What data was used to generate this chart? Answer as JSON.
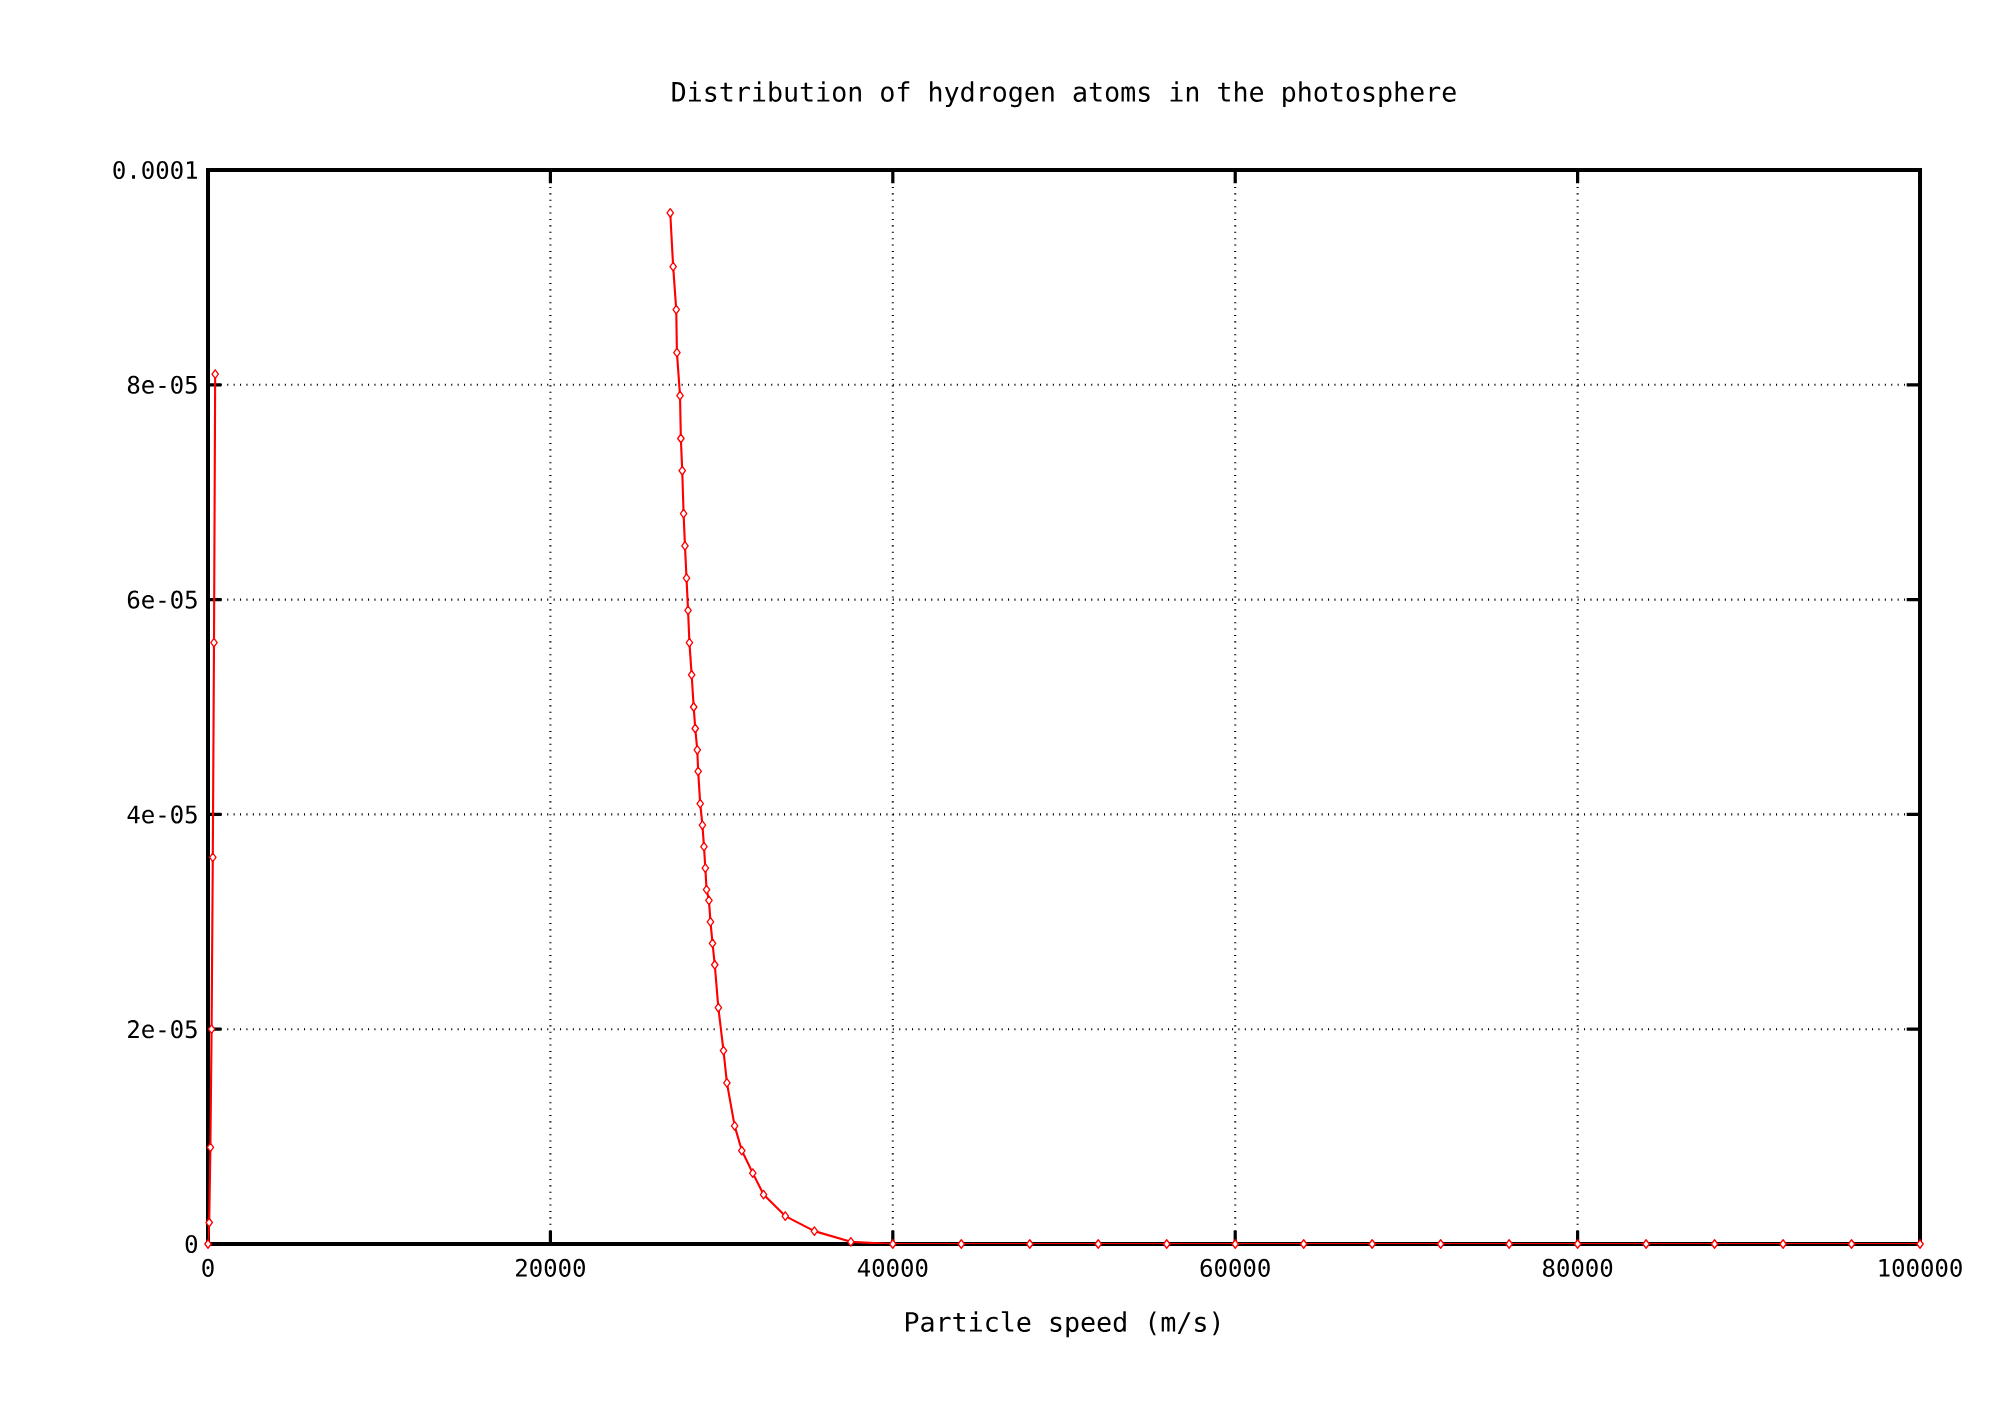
{
  "chart_data": {
    "type": "line",
    "title": "Distribution of hydrogen atoms in the photosphere",
    "xlabel": "Particle speed (m/s)",
    "x": [
      27000,
      27170,
      27350,
      27390,
      27570,
      27620,
      27700,
      27780,
      27860,
      27950,
      28040,
      28120,
      28250,
      28370,
      28460,
      28580,
      28630,
      28750,
      28880,
      28970,
      29050,
      29120,
      29260,
      29350,
      29470,
      29600,
      29810,
      30110,
      30310,
      30760,
      31180,
      31820,
      32450,
      33720,
      35420,
      37550,
      40000,
      44000,
      48000,
      52000,
      56000,
      60000,
      64000,
      68000,
      72000,
      76000,
      80000,
      84000,
      88000,
      92000,
      96000,
      100000
    ],
    "series": [
      {
        "color": "#ff0000",
        "x": [
          0,
          70,
          140,
          210,
          280,
          350,
          420
        ],
        "values": [
          0,
          2e-06,
          9e-06,
          2e-05,
          3.6e-05,
          5.6e-05,
          8.1e-05
        ]
      },
      {
        "color": "#ff0000",
        "values": [
          9.6e-05,
          9.1e-05,
          8.7e-05,
          8.3e-05,
          7.9e-05,
          7.5e-05,
          7.2e-05,
          6.8e-05,
          6.5e-05,
          6.2e-05,
          5.9e-05,
          5.6e-05,
          5.3e-05,
          5e-05,
          4.8e-05,
          4.6e-05,
          4.4e-05,
          4.1e-05,
          3.9e-05,
          3.7e-05,
          3.5e-05,
          3.3e-05,
          3.2e-05,
          3e-05,
          2.8e-05,
          2.6e-05,
          2.2e-05,
          1.8e-05,
          1.5e-05,
          1.1e-05,
          8.7e-06,
          6.6e-06,
          4.6e-06,
          2.6e-06,
          1.2e-06,
          2e-07,
          0,
          0,
          0,
          0,
          0,
          0,
          0,
          0,
          0,
          0,
          0,
          0,
          0,
          0,
          0,
          0
        ]
      }
    ],
    "xlim": [
      0,
      100000
    ],
    "xticks": [
      0,
      20000,
      40000,
      60000,
      80000,
      100000
    ],
    "ylim": [
      0,
      0.0001
    ],
    "yticks": [
      0,
      {
        "value": 2e-05,
        "label": "2e-05"
      },
      {
        "value": 4e-05,
        "label": "4e-05"
      },
      {
        "value": 6e-05,
        "label": "6e-05"
      },
      {
        "value": 8e-05,
        "label": "8e-05"
      },
      {
        "value": 0.0001,
        "label": "0.0001"
      }
    ],
    "grid": true,
    "marker": "diamond",
    "line_style": "solid"
  }
}
